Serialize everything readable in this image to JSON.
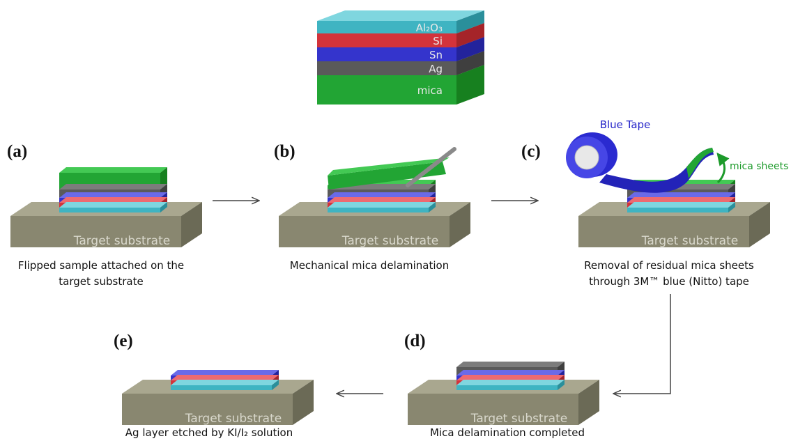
{
  "stack": {
    "layers": [
      "Al₂O₃",
      "Si",
      "Sn",
      "Ag",
      "mica"
    ]
  },
  "steps": [
    {
      "tag": "(a)",
      "substrate": "Target substrate",
      "caption": [
        "Flipped sample attached on the",
        "target substrate"
      ]
    },
    {
      "tag": "(b)",
      "substrate": "Target substrate",
      "caption": [
        "Mechanical mica delamination"
      ]
    },
    {
      "tag": "(c)",
      "substrate": "Target substrate",
      "caption": [
        "Removal of residual mica sheets",
        "through 3M™ blue (Nitto) tape"
      ],
      "tape": "Blue Tape",
      "sheets": "mica sheets"
    },
    {
      "tag": "(d)",
      "substrate": "Target substrate",
      "caption": [
        "Mica delamination completed"
      ]
    },
    {
      "tag": "(e)",
      "substrate": "Target substrate",
      "caption": [
        "Ag layer etched by KI/I₂ solution"
      ]
    }
  ]
}
